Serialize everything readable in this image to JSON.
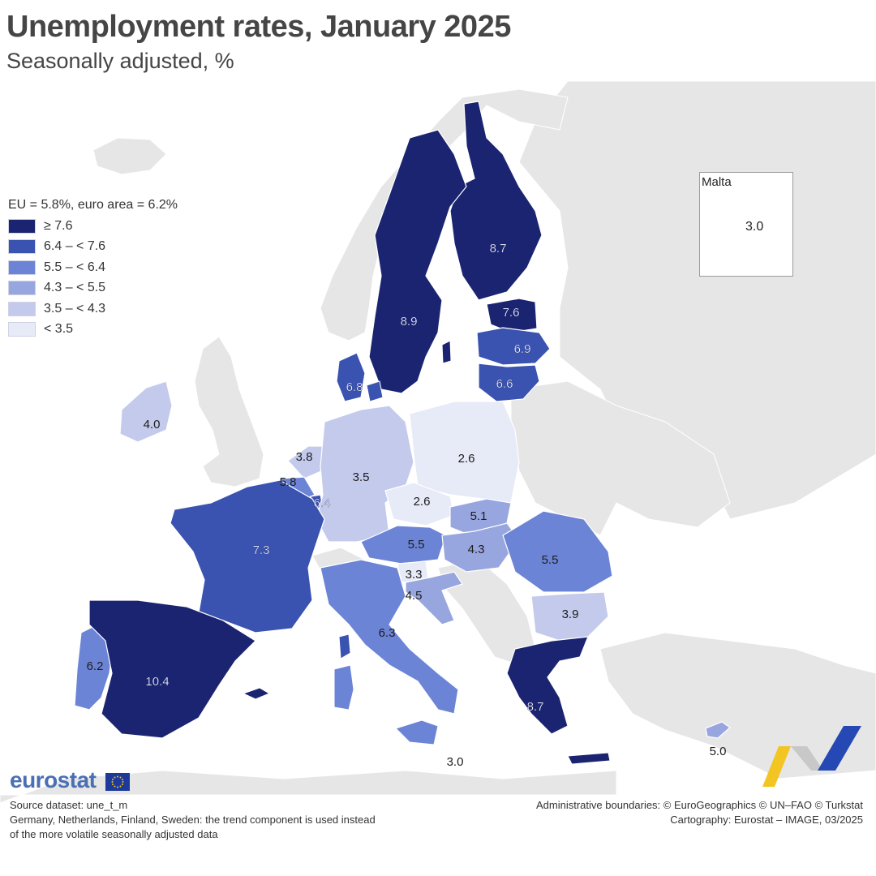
{
  "header": {
    "title": "Unemployment rates, January 2025",
    "subtitle": "Seasonally adjusted, %"
  },
  "legend": {
    "heading": "EU = 5.8%, euro area = 6.2%",
    "classes": [
      {
        "label": "≥ 7.6",
        "color": "#1b2470"
      },
      {
        "label": "6.4 – < 7.6",
        "color": "#3a52b0"
      },
      {
        "label": "5.5 – < 6.4",
        "color": "#6b84d6"
      },
      {
        "label": "4.3 – < 5.5",
        "color": "#98a6e0"
      },
      {
        "label": "3.5 – < 4.3",
        "color": "#c3caec"
      },
      {
        "label": "< 3.5",
        "color": "#e7eaf7"
      }
    ]
  },
  "colors": {
    "sea": "#ffffff",
    "non_eu_land": "#e6e6e6",
    "border": "#ffffff"
  },
  "inset": {
    "title": "Malta",
    "value": "3.0"
  },
  "countries": [
    {
      "name": "Finland",
      "value": 8.7,
      "label": "8.7"
    },
    {
      "name": "Sweden",
      "value": 8.9,
      "label": "8.9"
    },
    {
      "name": "Estonia",
      "value": 7.6,
      "label": "7.6"
    },
    {
      "name": "Latvia",
      "value": 6.9,
      "label": "6.9"
    },
    {
      "name": "Lithuania",
      "value": 6.6,
      "label": "6.6"
    },
    {
      "name": "Denmark",
      "value": 6.8,
      "label": "6.8"
    },
    {
      "name": "Ireland",
      "value": 4.0,
      "label": "4.0"
    },
    {
      "name": "Netherlands",
      "value": 3.8,
      "label": "3.8"
    },
    {
      "name": "Belgium",
      "value": 5.8,
      "label": "5.8"
    },
    {
      "name": "Luxembourg",
      "value": 6.4,
      "label": "6.4"
    },
    {
      "name": "Germany",
      "value": 3.5,
      "label": "3.5"
    },
    {
      "name": "Poland",
      "value": 2.6,
      "label": "2.6"
    },
    {
      "name": "Czechia",
      "value": 2.6,
      "label": "2.6"
    },
    {
      "name": "Slovakia",
      "value": 5.1,
      "label": "5.1"
    },
    {
      "name": "Austria",
      "value": 5.5,
      "label": "5.5"
    },
    {
      "name": "Hungary",
      "value": 4.3,
      "label": "4.3"
    },
    {
      "name": "Romania",
      "value": 5.5,
      "label": "5.5"
    },
    {
      "name": "Slovenia",
      "value": 3.3,
      "label": "3.3"
    },
    {
      "name": "Croatia",
      "value": 4.5,
      "label": "4.5"
    },
    {
      "name": "Bulgaria",
      "value": 3.9,
      "label": "3.9"
    },
    {
      "name": "France",
      "value": 7.3,
      "label": "7.3"
    },
    {
      "name": "Italy",
      "value": 6.3,
      "label": "6.3"
    },
    {
      "name": "Portugal",
      "value": 6.2,
      "label": "6.2"
    },
    {
      "name": "Spain",
      "value": 10.4,
      "label": "10.4"
    },
    {
      "name": "Greece",
      "value": 8.7,
      "label": "8.7"
    },
    {
      "name": "Cyprus",
      "value": 5.0,
      "label": "5.0"
    },
    {
      "name": "Malta",
      "value": 3.0,
      "label": "3.0"
    }
  ],
  "footer": {
    "logo": "eurostat",
    "source": "Source dataset: une_t_m",
    "note_line1": "Germany, Netherlands, Finland, Sweden: the trend component is used instead",
    "note_line2": "of the more volatile seasonally adjusted data",
    "credit_line1": "Administrative boundaries: © EuroGeographics © UN–FAO © Turkstat",
    "credit_line2": "Cartography: Eurostat – IMAGE, 03/2025"
  }
}
